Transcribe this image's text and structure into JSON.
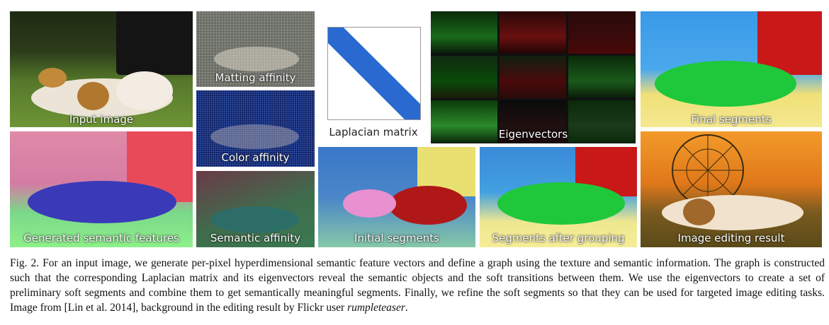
{
  "panels": {
    "input_image": "Input image",
    "matting_affinity": "Matting affinity",
    "color_affinity": "Color affinity",
    "semantic_affinity": "Semantic affinity",
    "generated_semantic_features": "Generated semantic features",
    "laplacian_matrix": "Laplacian matrix",
    "eigenvectors": "Eigenvectors",
    "initial_segments": "Initial segments",
    "segments_after_grouping": "Segments after grouping",
    "final_segments": "Final segments",
    "image_editing_result": "Image editing result"
  },
  "caption": {
    "label": "Fig. 2.",
    "text": "For an input image, we generate per-pixel hyperdimensional semantic feature vectors and define a graph using the texture and semantic information. The graph is constructed such that the corresponding Laplacian matrix and its eigenvectors reveal the semantic objects and the soft transitions between them. We use the eigenvectors to create a set of preliminary soft segments and combine them to get semantically meaningful segments. Finally, we refine the soft segments so that they can be used for targeted image editing tasks. Image from [Lin et al. 2014], background in the editing result by Flickr user",
    "credit": "rumpleteaser",
    "end": "."
  }
}
